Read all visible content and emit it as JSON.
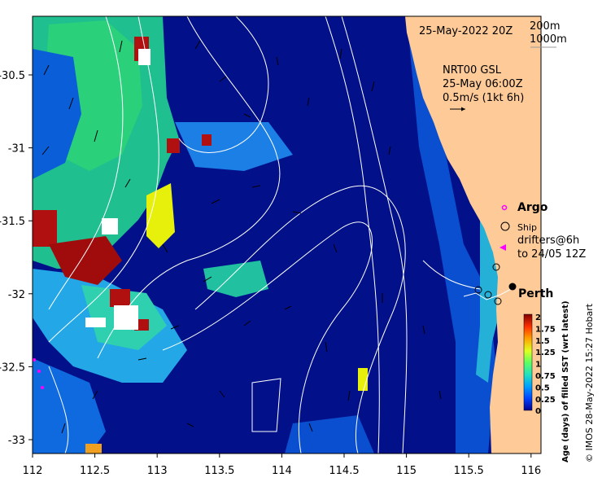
{
  "map": {
    "timestamp": "25-May-2022 20Z",
    "depth_contours": [
      "200m",
      "1000m"
    ],
    "model_label": "NRT00 GSL",
    "model_time": "25-May 06:00Z",
    "current_scale": "0.5m/s (1kt 6h)",
    "legend": {
      "argo": "Argo",
      "ship": "Ship",
      "drifters_line1": "drifters@6h",
      "drifters_line2": "to 24/05 12Z"
    },
    "place": "Perth",
    "x_ticks": [
      "112",
      "112.5",
      "113",
      "113.5",
      "114",
      "114.5",
      "115",
      "115.5",
      "116"
    ],
    "y_ticks": [
      "-30.5",
      "-31",
      "-31.5",
      "-32",
      "-32.5",
      "-33"
    ],
    "colorbar": {
      "title": "Age (days) of filled SST (wrt latest)",
      "ticks": [
        "2",
        "1.75",
        "1.5",
        "1.25",
        "1",
        "0.75",
        "0.5",
        "0.25",
        "0"
      ]
    },
    "credit": "© IMOS 28-May-2022 15:27 Hobart",
    "colors": {
      "ocean_deep": "#02118a",
      "land": "#fdca98",
      "accent_argo": "#ff00ff"
    }
  }
}
